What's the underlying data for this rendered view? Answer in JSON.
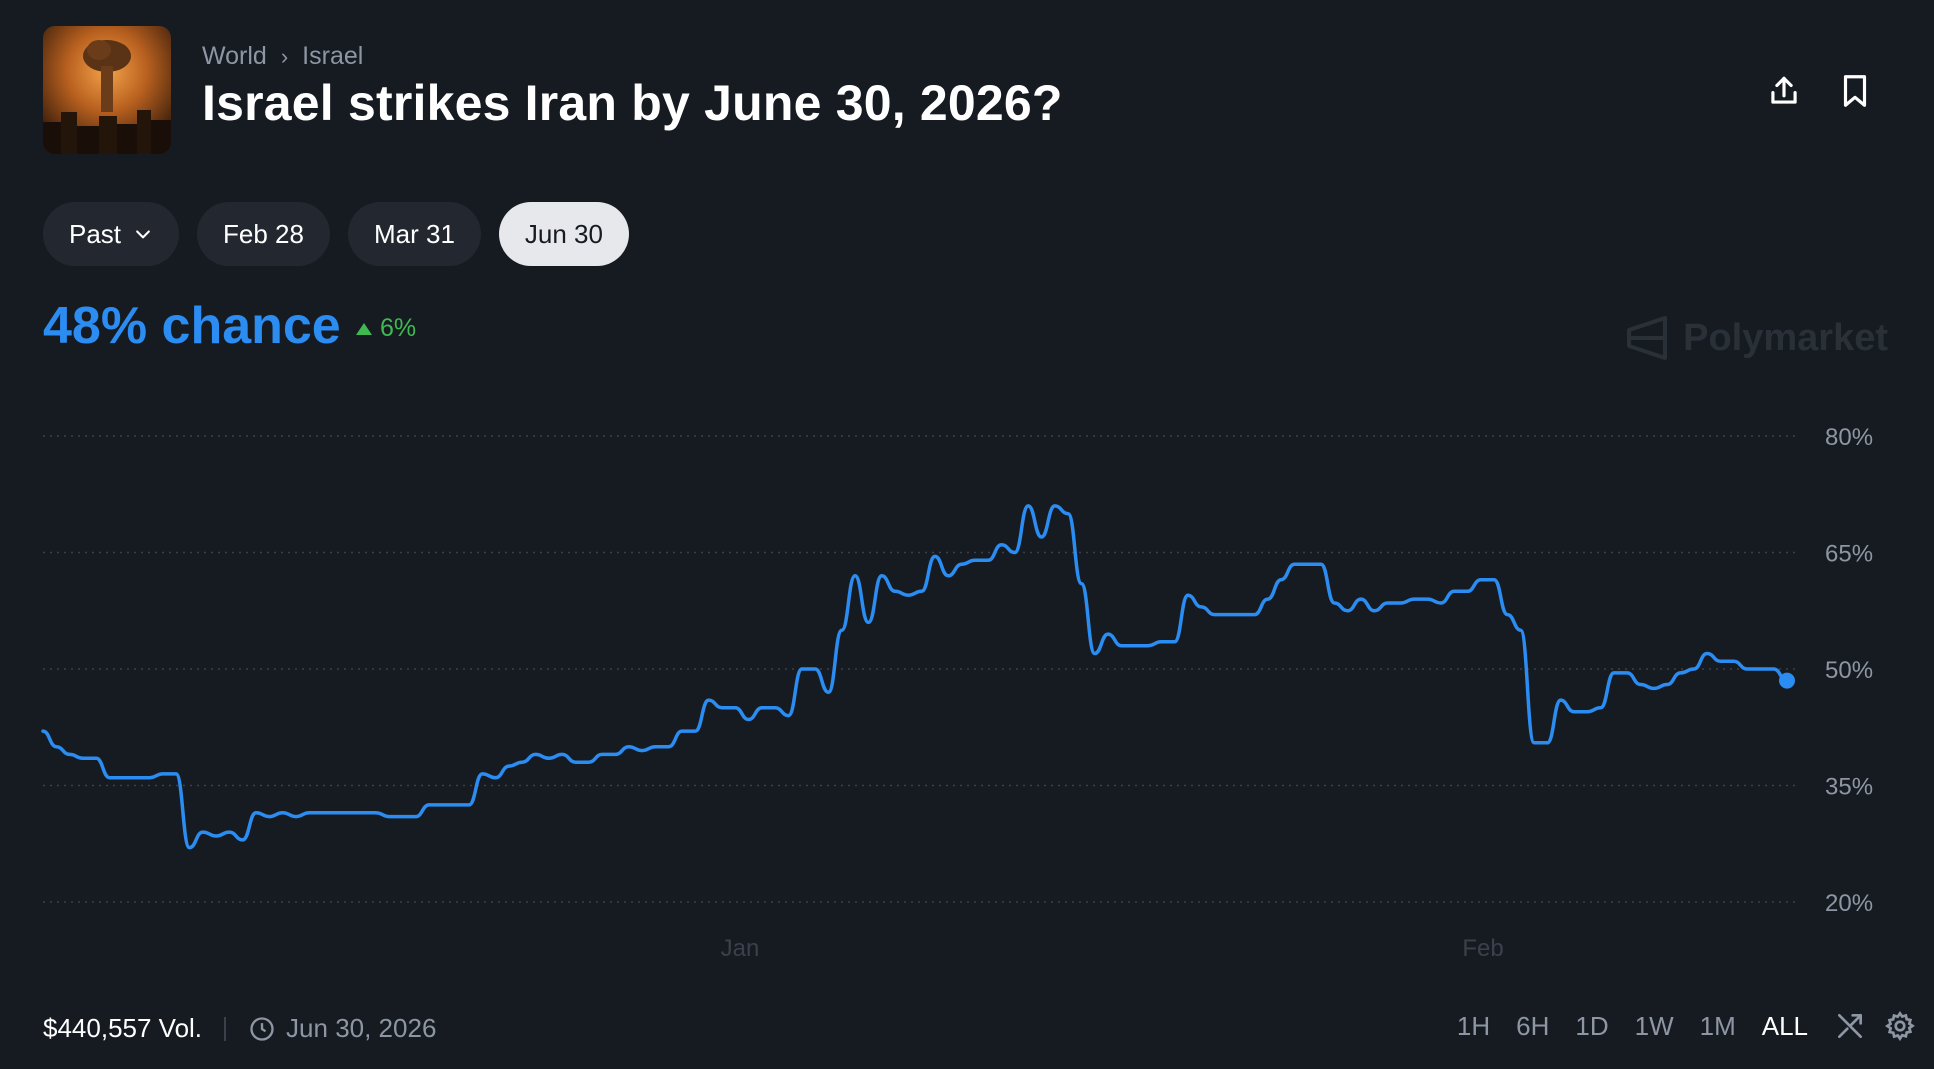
{
  "breadcrumb": {
    "first": "World",
    "second": "Israel"
  },
  "market": {
    "title": "Israel strikes Iran by June 30, 2026?"
  },
  "date_tabs": [
    "Past",
    "Feb 28",
    "Mar 31",
    "Jun 30"
  ],
  "active_tab": "Jun 30",
  "probability": {
    "chance_text": "48% chance",
    "delta_text": "6%"
  },
  "brand": {
    "name": "Polymarket"
  },
  "footer": {
    "volume": "$440,557 Vol.",
    "end_date": "Jun 30, 2026"
  },
  "time_ranges": [
    "1H",
    "6H",
    "1D",
    "1W",
    "1M",
    "ALL"
  ],
  "active_range": "ALL",
  "colors": {
    "accent": "#2b8cf2",
    "up": "#3fb950",
    "background": "#161b22"
  },
  "chart_data": {
    "type": "line",
    "y_ticks": [
      "80%",
      "65%",
      "50%",
      "35%",
      "20%"
    ],
    "y_tick_values": [
      80,
      65,
      50,
      35,
      20
    ],
    "x_tick_labels": [
      "Jan",
      "Feb"
    ],
    "ylim": [
      14,
      84
    ],
    "grid": true,
    "series": [
      {
        "values": [
          42,
          40,
          39,
          38.5,
          38.5,
          36,
          36,
          36,
          36,
          36.5,
          36.5,
          27,
          29,
          28.5,
          29,
          28,
          31.5,
          31,
          31.5,
          31,
          31.5,
          31.5,
          31.5,
          31.5,
          31.5,
          31.5,
          31,
          31,
          31,
          32.5,
          32.5,
          32.5,
          32.5,
          36.5,
          36,
          37.5,
          38,
          39,
          38.5,
          39,
          38,
          38,
          39,
          39,
          40,
          39.5,
          40,
          40,
          42,
          42,
          46,
          45,
          45,
          43.5,
          45,
          45,
          44,
          50,
          50,
          47,
          55,
          62,
          56,
          62,
          60,
          59.5,
          60,
          64.5,
          62,
          63.5,
          64,
          64,
          66,
          65,
          71,
          67,
          71,
          70,
          61,
          52,
          54.5,
          53,
          53,
          53,
          53.5,
          53.5,
          59.5,
          58,
          57,
          57,
          57,
          57,
          59,
          61.5,
          63.5,
          63.5,
          63.5,
          58.5,
          57.5,
          59,
          57.5,
          58.5,
          58.5,
          59,
          59,
          58.5,
          60,
          60,
          61.5,
          61.5,
          57,
          55,
          40.5,
          40.5,
          46,
          44.5,
          44.5,
          45,
          49.5,
          49.5,
          48,
          47.5,
          48,
          49.5,
          50,
          52,
          51,
          51,
          50,
          50,
          50,
          48.5
        ]
      }
    ]
  }
}
